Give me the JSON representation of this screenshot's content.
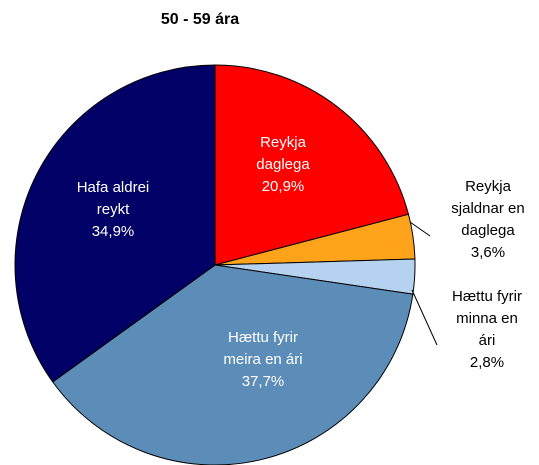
{
  "chart_data": {
    "type": "pie",
    "title": "50 - 59 ára",
    "categories": [
      [
        "Reykja",
        "daglega"
      ],
      [
        "Reykja",
        "sjaldnar en",
        "daglega"
      ],
      [
        "Hættu fyrir",
        "minna en",
        "ári"
      ],
      [
        "Hættu fyrir",
        "meira en ári"
      ],
      [
        "Hafa aldrei",
        "reykt"
      ]
    ],
    "values": [
      20.9,
      3.6,
      2.8,
      37.7,
      34.9
    ],
    "value_labels": [
      "20,9%",
      "3,6%",
      "2,8%",
      "37,7%",
      "34,9%"
    ],
    "colors": [
      "#ff0000",
      "#ffa31a",
      "#b5d3f0",
      "#5b8db8",
      "#000066"
    ]
  }
}
